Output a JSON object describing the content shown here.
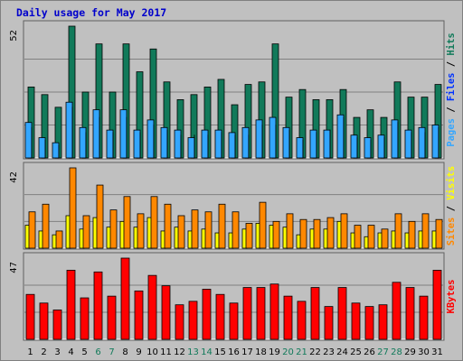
{
  "title": "Daily usage for May 2017",
  "colors": {
    "background": "#c0c0c0",
    "title": "#0000cc",
    "pages": "#33a6ff",
    "files": "#0033ff",
    "hits": "#117a5a",
    "visits": "#ffff00",
    "sites": "#ff8800",
    "kbytes": "#ff0000",
    "weekend_label": "#117a5a",
    "weekday_label": "#000000"
  },
  "chart_data": [
    {
      "type": "bar",
      "panel": "top",
      "ymax_label": "52",
      "right_labels": [
        "Pages",
        "Files",
        "Hits"
      ],
      "categories": [
        "1",
        "2",
        "3",
        "4",
        "5",
        "6",
        "7",
        "8",
        "9",
        "10",
        "11",
        "12",
        "13",
        "14",
        "15",
        "16",
        "17",
        "18",
        "19",
        "20",
        "21",
        "22",
        "23",
        "24",
        "25",
        "26",
        "27",
        "28",
        "29",
        "30",
        "31"
      ],
      "weekend_days": [
        "6",
        "7",
        "13",
        "14",
        "20",
        "21",
        "27",
        "28"
      ],
      "series": [
        {
          "name": "Hits",
          "values": [
            28,
            25,
            20,
            52,
            26,
            45,
            26,
            45,
            34,
            43,
            30,
            23,
            25,
            28,
            31,
            21,
            29,
            30,
            45,
            24,
            27,
            23,
            23,
            27,
            16,
            19,
            16,
            30,
            24,
            24,
            29
          ]
        },
        {
          "name": "Files",
          "values": [
            12,
            7,
            5,
            20,
            10,
            16,
            10,
            16,
            10,
            13,
            11,
            9,
            9,
            9,
            10,
            9,
            9,
            13,
            13,
            11,
            7,
            10,
            11,
            16,
            8,
            7,
            8,
            14,
            10,
            10,
            12
          ]
        },
        {
          "name": "Pages",
          "values": [
            14,
            8,
            6,
            22,
            12,
            19,
            11,
            19,
            11,
            15,
            12,
            11,
            8,
            11,
            11,
            10,
            12,
            15,
            16,
            12,
            8,
            11,
            11,
            17,
            9,
            8,
            9,
            15,
            11,
            12,
            13
          ]
        }
      ]
    },
    {
      "type": "bar",
      "panel": "middle",
      "ymax_label": "42",
      "right_labels": [
        "Sites",
        "Visits"
      ],
      "categories": [
        "1",
        "2",
        "3",
        "4",
        "5",
        "6",
        "7",
        "8",
        "9",
        "10",
        "11",
        "12",
        "13",
        "14",
        "15",
        "16",
        "17",
        "18",
        "19",
        "20",
        "21",
        "22",
        "23",
        "24",
        "25",
        "26",
        "27",
        "28",
        "29",
        "30",
        "31"
      ],
      "series": [
        {
          "name": "Visits",
          "values": [
            12,
            9,
            7,
            17,
            10,
            16,
            11,
            14,
            11,
            16,
            9,
            11,
            9,
            10,
            8,
            8,
            10,
            13,
            12,
            11,
            7,
            10,
            10,
            14,
            8,
            6,
            8,
            9,
            8,
            9,
            9
          ]
        },
        {
          "name": "Sites",
          "values": [
            19,
            23,
            9,
            42,
            17,
            33,
            20,
            27,
            18,
            27,
            23,
            17,
            20,
            19,
            23,
            19,
            13,
            24,
            14,
            18,
            15,
            15,
            16,
            18,
            12,
            12,
            10,
            18,
            14,
            18,
            15
          ]
        }
      ]
    },
    {
      "type": "bar",
      "panel": "bottom",
      "ymax_label": "47",
      "right_labels": [
        "KBytes"
      ],
      "categories": [
        "1",
        "2",
        "3",
        "4",
        "5",
        "6",
        "7",
        "8",
        "9",
        "10",
        "11",
        "12",
        "13",
        "14",
        "15",
        "16",
        "17",
        "18",
        "19",
        "20",
        "21",
        "22",
        "23",
        "24",
        "25",
        "26",
        "27",
        "28",
        "29",
        "30",
        "31"
      ],
      "series": [
        {
          "name": "KBytes",
          "values": [
            26,
            21,
            17,
            40,
            24,
            39,
            25,
            47,
            28,
            37,
            31,
            20,
            22,
            29,
            26,
            21,
            30,
            30,
            32,
            25,
            22,
            30,
            19,
            30,
            21,
            19,
            20,
            33,
            30,
            25,
            40
          ]
        }
      ]
    }
  ]
}
